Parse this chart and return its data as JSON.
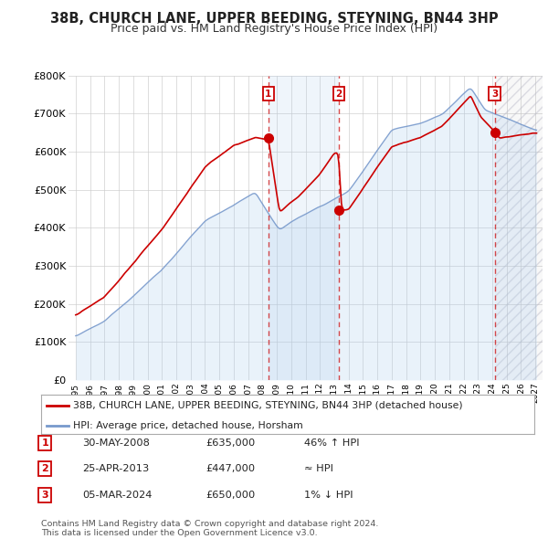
{
  "title": "38B, CHURCH LANE, UPPER BEEDING, STEYNING, BN44 3HP",
  "subtitle": "Price paid vs. HM Land Registry's House Price Index (HPI)",
  "ylim": [
    0,
    800000
  ],
  "yticks": [
    0,
    100000,
    200000,
    300000,
    400000,
    500000,
    600000,
    700000,
    800000
  ],
  "ytick_labels": [
    "£0",
    "£100K",
    "£200K",
    "£300K",
    "£400K",
    "£500K",
    "£600K",
    "£700K",
    "£800K"
  ],
  "sale_color": "#cc0000",
  "hpi_color": "#7799cc",
  "hpi_fill_color": "#ddeeff",
  "background_color": "#ffffff",
  "grid_color": "#cccccc",
  "legend_label_sale": "38B, CHURCH LANE, UPPER BEEDING, STEYNING, BN44 3HP (detached house)",
  "legend_label_hpi": "HPI: Average price, detached house, Horsham",
  "transactions": [
    {
      "num": 1,
      "date": "30-MAY-2008",
      "price": 635000,
      "pct": "46% ↑ HPI",
      "year": 2008.41
    },
    {
      "num": 2,
      "date": "25-APR-2013",
      "price": 447000,
      "pct": "≈ HPI",
      "year": 2013.31
    },
    {
      "num": 3,
      "date": "05-MAR-2024",
      "price": 650000,
      "pct": "1% ↓ HPI",
      "year": 2024.17
    }
  ],
  "footer1": "Contains HM Land Registry data © Crown copyright and database right 2024.",
  "footer2": "This data is licensed under the Open Government Licence v3.0.",
  "title_fontsize": 10.5,
  "subtitle_fontsize": 9,
  "axis_fontsize": 8
}
